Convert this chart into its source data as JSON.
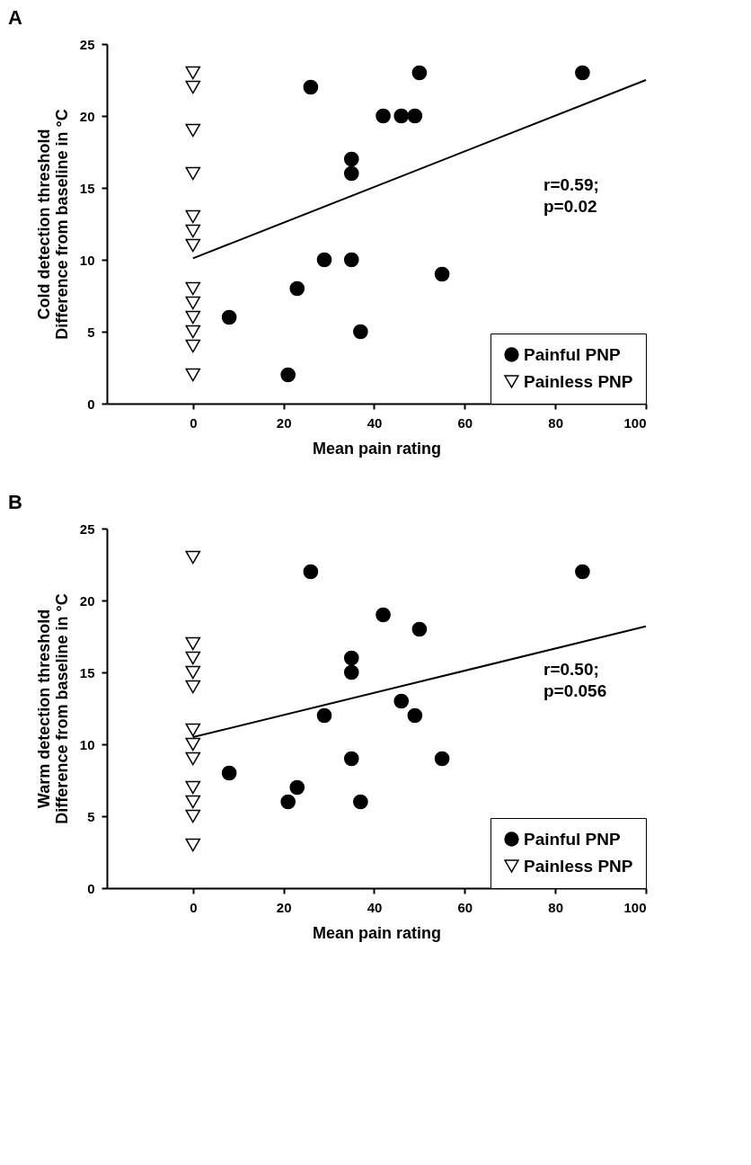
{
  "chart_data": [
    {
      "type": "scatter",
      "title": "A",
      "xlabel": "Mean pain rating",
      "ylabel": "Cold detection threshold\nDifference from baseline in °C",
      "xlim": [
        -19,
        100
      ],
      "xticks": [
        0,
        20,
        40,
        60,
        80,
        100
      ],
      "ylim": [
        0,
        25
      ],
      "yticks": [
        0,
        5,
        10,
        15,
        20,
        25
      ],
      "grid": false,
      "legend": "bottom right",
      "annotations": [
        "r=0.59;\np=0.02"
      ],
      "series": [
        {
          "name": "Painful PNP",
          "color": "#000000",
          "marker": "circle",
          "x": [
            8,
            21,
            23,
            26,
            29,
            35,
            35,
            35,
            37,
            42,
            46,
            49,
            50,
            55,
            86
          ],
          "values": [
            6,
            2,
            8,
            22,
            10,
            17,
            16,
            10,
            5,
            20,
            20,
            20,
            23,
            9,
            23
          ]
        },
        {
          "name": "Painless PNP",
          "color": "#000000",
          "marker": "triangle",
          "x": [
            0,
            0,
            0,
            0,
            0,
            0,
            0,
            0,
            0,
            0,
            0,
            0,
            0
          ],
          "values": [
            23,
            22,
            19,
            16,
            13,
            12,
            11,
            8,
            7,
            6,
            5,
            4,
            2
          ]
        },
        {
          "type": "line",
          "color": "#000000",
          "x": [
            0,
            100
          ],
          "values": [
            10.1,
            22.5
          ]
        }
      ]
    },
    {
      "type": "scatter",
      "title": "B",
      "xlabel": "Mean pain rating",
      "ylabel": "Warm detection threshold\nDifference from baseline in °C",
      "xlim": [
        -19,
        100
      ],
      "xticks": [
        0,
        20,
        40,
        60,
        80,
        100
      ],
      "ylim": [
        0,
        25
      ],
      "yticks": [
        0,
        5,
        10,
        15,
        20,
        25
      ],
      "grid": false,
      "legend": "bottom right",
      "annotations": [
        "r=0.50;\np=0.056"
      ],
      "series": [
        {
          "name": "Painful PNP",
          "color": "#000000",
          "marker": "circle",
          "x": [
            8,
            21,
            23,
            26,
            29,
            35,
            35,
            35,
            37,
            42,
            46,
            49,
            50,
            55,
            86
          ],
          "values": [
            8,
            6,
            7,
            22,
            12,
            16,
            15,
            9,
            6,
            19,
            13,
            12,
            18,
            9,
            22
          ]
        },
        {
          "name": "Painless PNP",
          "color": "#000000",
          "marker": "triangle",
          "x": [
            0,
            0,
            0,
            0,
            0,
            0,
            0,
            0,
            0,
            0,
            0,
            0
          ],
          "values": [
            23,
            17,
            16,
            15,
            14,
            11,
            10,
            9,
            7,
            6,
            5,
            3
          ]
        },
        {
          "type": "line",
          "color": "#000000",
          "x": [
            0,
            100
          ],
          "values": [
            10.5,
            18.2
          ]
        }
      ]
    }
  ]
}
